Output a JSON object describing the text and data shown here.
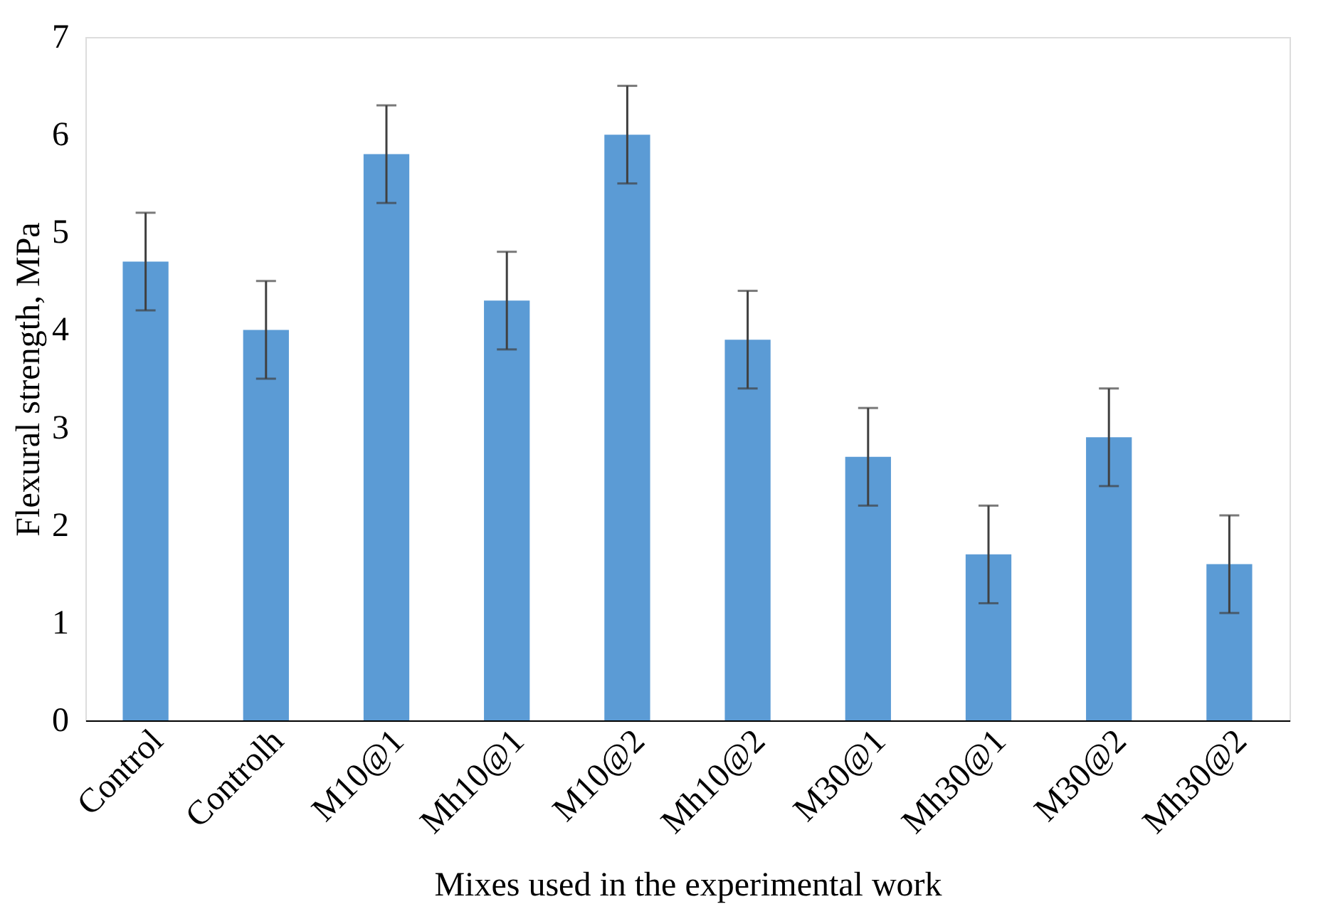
{
  "chart_data": {
    "type": "bar",
    "xlabel": "Mixes used in the experimental work",
    "ylabel": "Flexural strength, MPa",
    "categories": [
      "Control",
      "Controlh",
      "M10@1",
      "Mh10@1",
      "M10@2",
      "Mh10@2",
      "M30@1",
      "Mh30@1",
      "M30@2",
      "Mh30@2"
    ],
    "values": [
      4.7,
      4.0,
      5.8,
      4.3,
      6.0,
      3.9,
      2.7,
      1.7,
      2.9,
      1.6
    ],
    "errors": [
      0.5,
      0.5,
      0.5,
      0.5,
      0.5,
      0.5,
      0.5,
      0.5,
      0.5,
      0.5
    ],
    "color": "#5b9bd5",
    "ylim": [
      0,
      7
    ],
    "yticks": [
      0,
      1,
      2,
      3,
      4,
      5,
      6,
      7
    ],
    "grid": false
  }
}
